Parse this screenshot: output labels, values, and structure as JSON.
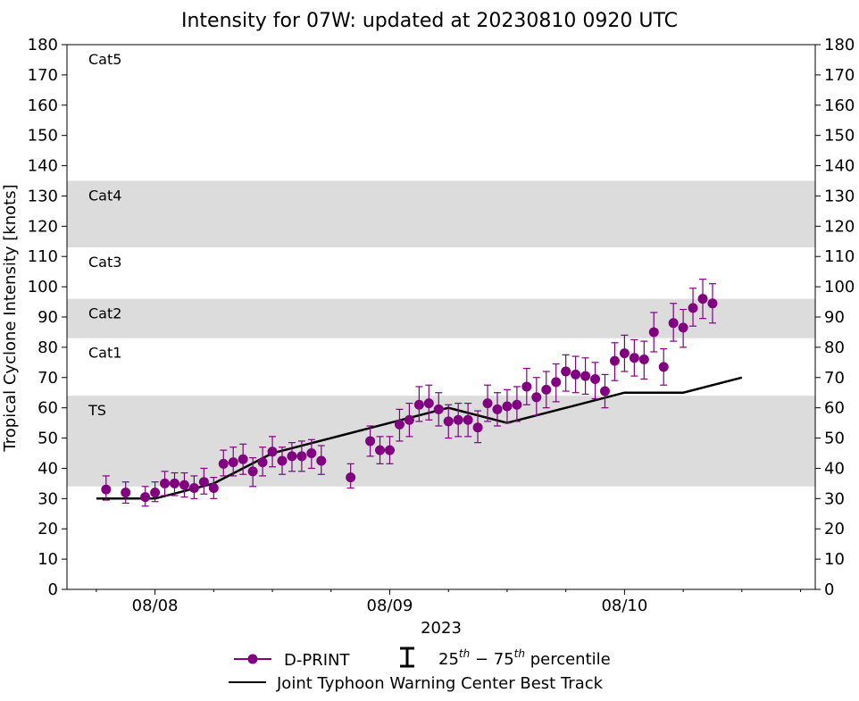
{
  "chart_data": {
    "type": "line",
    "title": "Intensity for 07W: updated at 20230810 0920 UTC",
    "xlabel": "2023",
    "ylabel": "Tropical Cyclone Intensity [knots]",
    "ylim": [
      0,
      180
    ],
    "xlim_hours": [
      -18,
      135
    ],
    "y_ticks": [
      0,
      10,
      20,
      30,
      40,
      50,
      60,
      70,
      80,
      90,
      100,
      110,
      120,
      130,
      140,
      150,
      160,
      170,
      180
    ],
    "x_ticks": [
      {
        "hour": 0,
        "label": "08/08"
      },
      {
        "hour": 48,
        "label": "08/09"
      },
      {
        "hour": 96,
        "label": "08/10"
      }
    ],
    "minor_tick_hours": [
      -12,
      12,
      24,
      36,
      60,
      72,
      84,
      108,
      120,
      132
    ],
    "categories": [
      {
        "label": "TS",
        "min": 34,
        "max": 64,
        "shaded": true
      },
      {
        "label": "Cat1",
        "min": 64,
        "max": 83,
        "shaded": false
      },
      {
        "label": "Cat2",
        "min": 83,
        "max": 96,
        "shaded": true
      },
      {
        "label": "Cat3",
        "min": 96,
        "max": 113,
        "shaded": false
      },
      {
        "label": "Cat4",
        "min": 113,
        "max": 135,
        "shaded": true
      },
      {
        "label": "Cat5",
        "min": 135,
        "max": 180,
        "shaded": false
      }
    ],
    "series": [
      {
        "name": "D-PRINT",
        "color": "#800080",
        "points": [
          {
            "h": -10,
            "v": 33,
            "lo": 29.5,
            "hi": 37.5
          },
          {
            "h": -6,
            "v": 32,
            "lo": 28.5,
            "hi": 35.5
          },
          {
            "h": -2,
            "v": 30.5,
            "lo": 27.5,
            "hi": 34
          },
          {
            "h": 0,
            "v": 32,
            "lo": 29,
            "hi": 35.5
          },
          {
            "h": 2,
            "v": 35,
            "lo": 31,
            "hi": 39
          },
          {
            "h": 4,
            "v": 35,
            "lo": 31,
            "hi": 38.5
          },
          {
            "h": 6,
            "v": 34.5,
            "lo": 30.5,
            "hi": 38.5
          },
          {
            "h": 8,
            "v": 33.5,
            "lo": 30,
            "hi": 37.5
          },
          {
            "h": 10,
            "v": 35.5,
            "lo": 31.5,
            "hi": 40
          },
          {
            "h": 12,
            "v": 33.5,
            "lo": 30,
            "hi": 37
          },
          {
            "h": 14,
            "v": 41.5,
            "lo": 37.5,
            "hi": 46
          },
          {
            "h": 16,
            "v": 42,
            "lo": 37.5,
            "hi": 47
          },
          {
            "h": 18,
            "v": 43,
            "lo": 38,
            "hi": 48
          },
          {
            "h": 20,
            "v": 39,
            "lo": 34,
            "hi": 43.5
          },
          {
            "h": 22,
            "v": 42,
            "lo": 37.5,
            "hi": 47
          },
          {
            "h": 24,
            "v": 45.5,
            "lo": 40.5,
            "hi": 50.5
          },
          {
            "h": 26,
            "v": 42.5,
            "lo": 38,
            "hi": 47
          },
          {
            "h": 28,
            "v": 44,
            "lo": 39,
            "hi": 48.5
          },
          {
            "h": 30,
            "v": 44,
            "lo": 39,
            "hi": 49
          },
          {
            "h": 32,
            "v": 45,
            "lo": 40,
            "hi": 49.5
          },
          {
            "h": 34,
            "v": 42.5,
            "lo": 38,
            "hi": 47.5
          },
          {
            "h": 40,
            "v": 37,
            "lo": 33.5,
            "hi": 41.5
          },
          {
            "h": 44,
            "v": 49,
            "lo": 44,
            "hi": 54
          },
          {
            "h": 46,
            "v": 46,
            "lo": 41.5,
            "hi": 50.5
          },
          {
            "h": 48,
            "v": 46,
            "lo": 41.5,
            "hi": 50.5
          },
          {
            "h": 50,
            "v": 54.5,
            "lo": 49,
            "hi": 59.5
          },
          {
            "h": 52,
            "v": 56,
            "lo": 50.5,
            "hi": 61.5
          },
          {
            "h": 54,
            "v": 61,
            "lo": 55.5,
            "hi": 67
          },
          {
            "h": 56,
            "v": 61.5,
            "lo": 56,
            "hi": 67.5
          },
          {
            "h": 58,
            "v": 59.5,
            "lo": 54,
            "hi": 65
          },
          {
            "h": 60,
            "v": 55.5,
            "lo": 50,
            "hi": 61
          },
          {
            "h": 62,
            "v": 56,
            "lo": 50.5,
            "hi": 61.5
          },
          {
            "h": 64,
            "v": 56,
            "lo": 50.5,
            "hi": 61.5
          },
          {
            "h": 66,
            "v": 53.5,
            "lo": 48.5,
            "hi": 59
          },
          {
            "h": 68,
            "v": 61.5,
            "lo": 55.5,
            "hi": 67.5
          },
          {
            "h": 70,
            "v": 59.5,
            "lo": 54,
            "hi": 65
          },
          {
            "h": 72,
            "v": 60.5,
            "lo": 55,
            "hi": 66
          },
          {
            "h": 74,
            "v": 61,
            "lo": 55.5,
            "hi": 67
          },
          {
            "h": 76,
            "v": 67,
            "lo": 61,
            "hi": 73
          },
          {
            "h": 78,
            "v": 63.5,
            "lo": 57.5,
            "hi": 70
          },
          {
            "h": 80,
            "v": 66,
            "lo": 60,
            "hi": 72
          },
          {
            "h": 82,
            "v": 68.5,
            "lo": 62,
            "hi": 74.5
          },
          {
            "h": 84,
            "v": 72,
            "lo": 65.5,
            "hi": 77.5
          },
          {
            "h": 86,
            "v": 71,
            "lo": 65,
            "hi": 77
          },
          {
            "h": 88,
            "v": 70.5,
            "lo": 64.5,
            "hi": 76.5
          },
          {
            "h": 90,
            "v": 69.5,
            "lo": 63,
            "hi": 75
          },
          {
            "h": 92,
            "v": 65.5,
            "lo": 60,
            "hi": 71
          },
          {
            "h": 94,
            "v": 75.5,
            "lo": 69,
            "hi": 81.5
          },
          {
            "h": 96,
            "v": 78,
            "lo": 72,
            "hi": 84
          },
          {
            "h": 98,
            "v": 76.5,
            "lo": 70.5,
            "hi": 82.5
          },
          {
            "h": 100,
            "v": 76,
            "lo": 69.5,
            "hi": 82
          },
          {
            "h": 102,
            "v": 85,
            "lo": 78.5,
            "hi": 91.5
          },
          {
            "h": 104,
            "v": 73.5,
            "lo": 67.5,
            "hi": 79.5
          },
          {
            "h": 106,
            "v": 88,
            "lo": 82,
            "hi": 94.5
          },
          {
            "h": 108,
            "v": 86.5,
            "lo": 80,
            "hi": 92.5
          },
          {
            "h": 110,
            "v": 93,
            "lo": 87,
            "hi": 99.5
          },
          {
            "h": 112,
            "v": 96,
            "lo": 89.5,
            "hi": 102.5
          },
          {
            "h": 114,
            "v": 94.5,
            "lo": 88,
            "hi": 101
          }
        ]
      },
      {
        "name": "Joint Typhoon Warning Center Best Track",
        "color": "#000000",
        "points": [
          {
            "h": -12,
            "v": 30
          },
          {
            "h": 0,
            "v": 30
          },
          {
            "h": 12,
            "v": 35
          },
          {
            "h": 24,
            "v": 45
          },
          {
            "h": 36,
            "v": 50
          },
          {
            "h": 48,
            "v": 55
          },
          {
            "h": 60,
            "v": 60
          },
          {
            "h": 72,
            "v": 55
          },
          {
            "h": 84,
            "v": 60
          },
          {
            "h": 96,
            "v": 65
          },
          {
            "h": 108,
            "v": 65
          },
          {
            "h": 120,
            "v": 70
          }
        ]
      }
    ],
    "legend": {
      "position": "bottom-center",
      "dprint": "D-PRINT",
      "percentile_prefix": "25",
      "percentile_sup1": "th",
      "percentile_mid": " − 75",
      "percentile_sup2": "th",
      "percentile_suffix": " percentile",
      "best_track": "Joint Typhoon Warning Center Best Track"
    },
    "colors": {
      "band": "#dcdcdc",
      "dprint": "#800080",
      "best_track": "#000000"
    }
  }
}
